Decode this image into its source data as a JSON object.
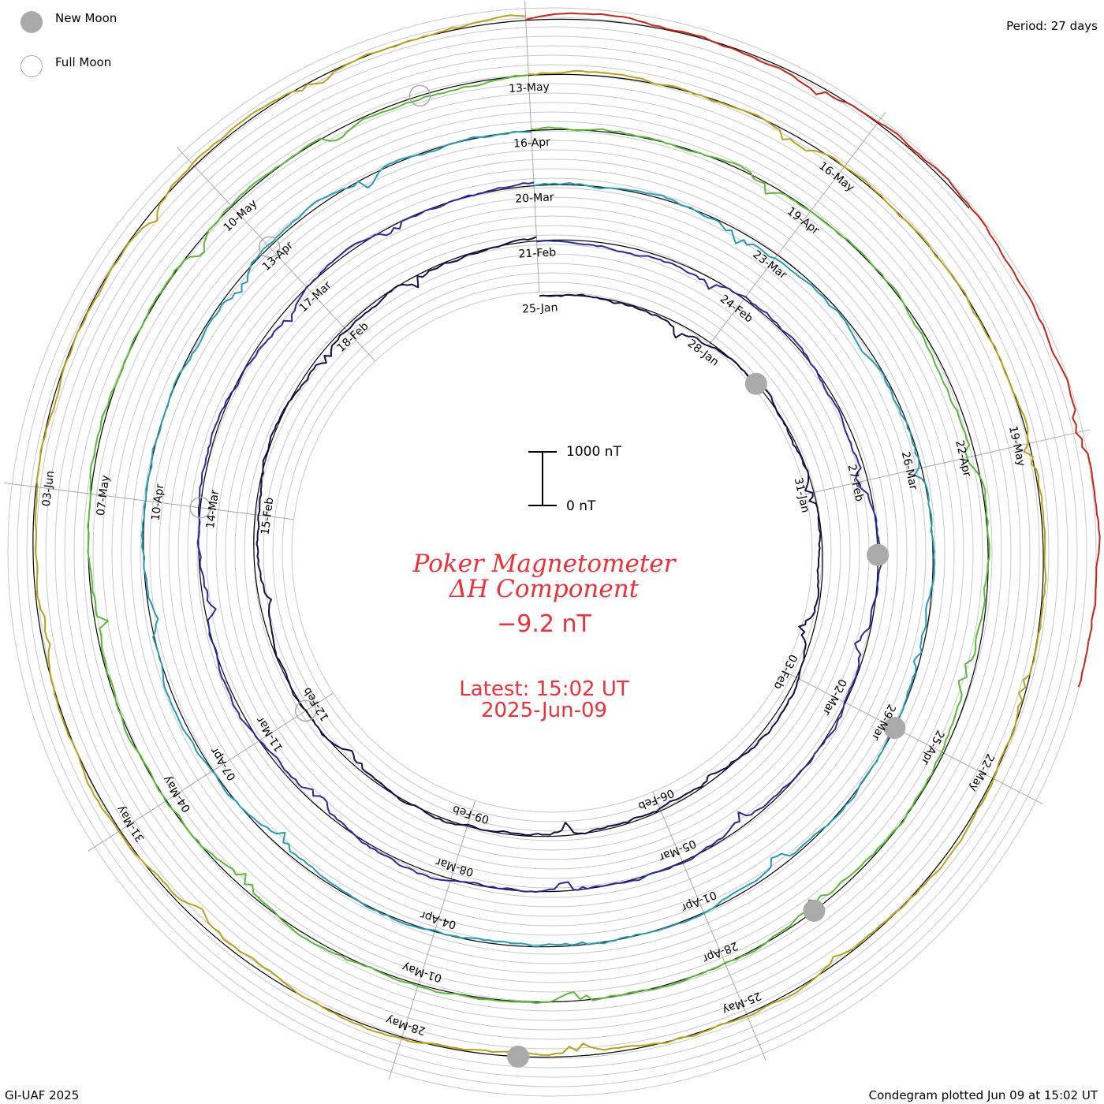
{
  "legend": {
    "new_moon": "New Moon",
    "full_moon": "Full Moon"
  },
  "period": "Period: 27 days",
  "credit": "GI-UAF 2025",
  "plotted": "Condegram plotted Jun 09 at 15:02 UT",
  "center": {
    "title": "Poker Magnetometer",
    "subtitle": "ΔH Component",
    "value": "−9.2 nT",
    "latest": "Latest: 15:02 UT",
    "latest_date": "2025-Jun-09"
  },
  "scale": {
    "top_label": "1000 nT",
    "bottom_label": "0 nT"
  },
  "colors": {
    "moon": "#aaaaaa",
    "grid": "#c8c8c8",
    "baseline": "#000000",
    "accent_text": "#e8323c"
  },
  "chart_data": {
    "type": "line",
    "plot_form": "condegram spiral (one turn per 27-day period)",
    "component": "ΔH",
    "units": "nT",
    "series": [
      {
        "color": "#10104a",
        "date_labels": [
          "25-Jan",
          "28-Jan",
          "31-Jan",
          "03-Feb",
          "06-Feb",
          "09-Feb",
          "12-Feb",
          "15-Feb",
          "18-Feb"
        ]
      },
      {
        "color": "#2a2a9a",
        "date_labels": [
          "21-Feb",
          "24-Feb",
          "27-Feb",
          "02-Mar",
          "05-Mar",
          "08-Mar",
          "11-Mar",
          "14-Mar",
          "17-Mar"
        ]
      },
      {
        "color": "#2a9ab0",
        "date_labels": [
          "20-Mar",
          "23-Mar",
          "26-Mar",
          "29-Mar",
          "01-Apr",
          "04-Apr",
          "07-Apr",
          "10-Apr",
          "13-Apr"
        ]
      },
      {
        "color": "#5ab83a",
        "date_labels": [
          "16-Apr",
          "19-Apr",
          "22-Apr",
          "25-Apr",
          "28-Apr",
          "01-May",
          "04-May",
          "07-May",
          "10-May"
        ]
      },
      {
        "color": "#b8a020",
        "date_labels": [
          "13-May",
          "16-May",
          "19-May",
          "22-May",
          "25-May",
          "28-May",
          "31-May",
          "03-Jun"
        ]
      },
      {
        "color": "#c0281a",
        "date_labels": []
      }
    ],
    "new_moons": [
      "29-Jan",
      "28-Feb",
      "29-Mar",
      "27-Apr",
      "27-May"
    ],
    "full_moons": [
      "12-Feb",
      "14-Mar",
      "13-Apr",
      "12-May"
    ]
  }
}
